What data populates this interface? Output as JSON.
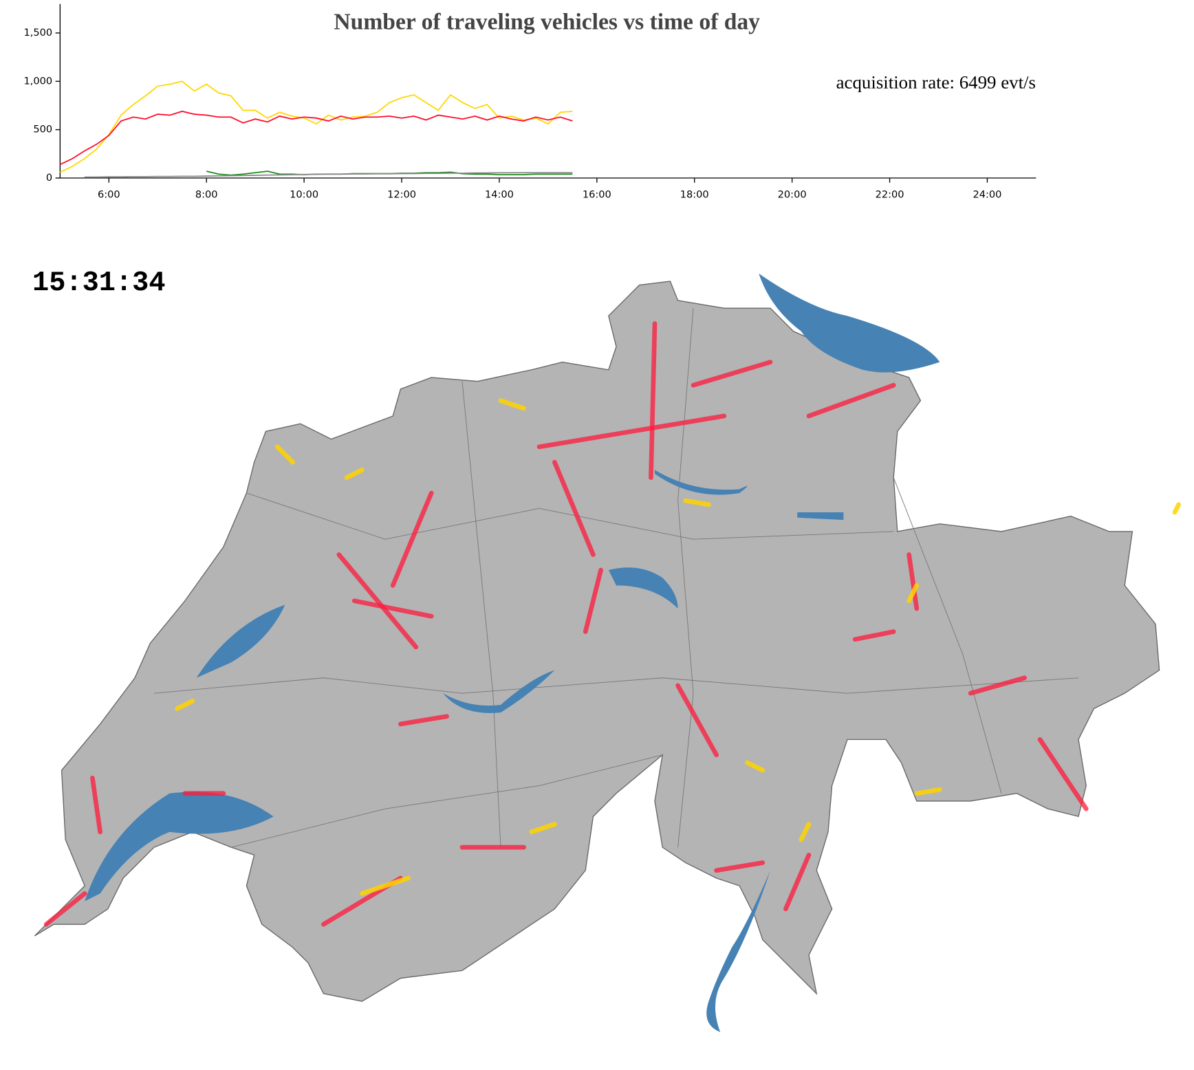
{
  "chart_data": {
    "type": "line",
    "title": "Number of traveling vehicles vs time of day",
    "x": [
      5,
      5.25,
      5.5,
      5.75,
      6,
      6.25,
      6.5,
      6.75,
      7,
      7.25,
      7.5,
      7.75,
      8,
      8.25,
      8.5,
      8.75,
      9,
      9.25,
      9.5,
      9.75,
      10,
      10.25,
      10.5,
      10.75,
      11,
      11.25,
      11.5,
      11.75,
      12,
      12.25,
      12.5,
      12.75,
      13,
      13.25,
      13.5,
      13.75,
      14,
      14.25,
      14.5,
      14.75,
      15,
      15.25,
      15.5
    ],
    "series": [
      {
        "color": "#ffd700",
        "values": [
          60,
          120,
          200,
          300,
          450,
          650,
          760,
          850,
          950,
          970,
          1000,
          900,
          970,
          880,
          850,
          700,
          700,
          620,
          680,
          640,
          620,
          560,
          650,
          600,
          630,
          640,
          680,
          780,
          830,
          860,
          780,
          700,
          860,
          780,
          720,
          760,
          620,
          640,
          600,
          620,
          560,
          680,
          690
        ]
      },
      {
        "color": "#ff0a2a",
        "values": [
          140,
          200,
          280,
          350,
          440,
          590,
          630,
          610,
          660,
          650,
          690,
          660,
          650,
          630,
          630,
          570,
          610,
          580,
          640,
          610,
          630,
          620,
          590,
          640,
          610,
          630,
          630,
          640,
          620,
          640,
          600,
          650,
          630,
          610,
          640,
          600,
          640,
          610,
          590,
          630,
          600,
          630,
          590
        ]
      },
      {
        "color": "#1a8a1a",
        "values": [
          null,
          null,
          null,
          null,
          null,
          null,
          null,
          null,
          null,
          null,
          null,
          null,
          70,
          40,
          30,
          40,
          55,
          70,
          40,
          40,
          35,
          40,
          40,
          40,
          45,
          45,
          45,
          45,
          50,
          50,
          55,
          55,
          60,
          45,
          40,
          40,
          35,
          35,
          35,
          40,
          40,
          40,
          40
        ]
      },
      {
        "color": "#888888",
        "values": [
          null,
          null,
          10,
          10,
          12,
          12,
          14,
          14,
          16,
          16,
          18,
          18,
          20,
          22,
          24,
          26,
          28,
          30,
          32,
          34,
          36,
          38,
          40,
          40,
          42,
          42,
          44,
          44,
          46,
          46,
          48,
          48,
          50,
          50,
          52,
          52,
          54,
          54,
          55,
          55,
          55,
          55,
          55
        ]
      }
    ],
    "xlim": [
      5,
      25
    ],
    "xticks": [
      {
        "value": 6,
        "label": "6:00"
      },
      {
        "value": 8,
        "label": "8:00"
      },
      {
        "value": 10,
        "label": "10:00"
      },
      {
        "value": 12,
        "label": "12:00"
      },
      {
        "value": 14,
        "label": "14:00"
      },
      {
        "value": 16,
        "label": "16:00"
      },
      {
        "value": 18,
        "label": "18:00"
      },
      {
        "value": 20,
        "label": "20:00"
      },
      {
        "value": 22,
        "label": "22:00"
      },
      {
        "value": 24,
        "label": "24:00"
      }
    ],
    "ylim": [
      0,
      1800
    ],
    "yticks": [
      0,
      500,
      {
        "value": 1000,
        "label": "1,000"
      },
      {
        "value": 1500,
        "label": "1,500"
      }
    ]
  },
  "acquisition_rate": "acquisition rate: 6499 evt/s",
  "clock": "15:31:34"
}
